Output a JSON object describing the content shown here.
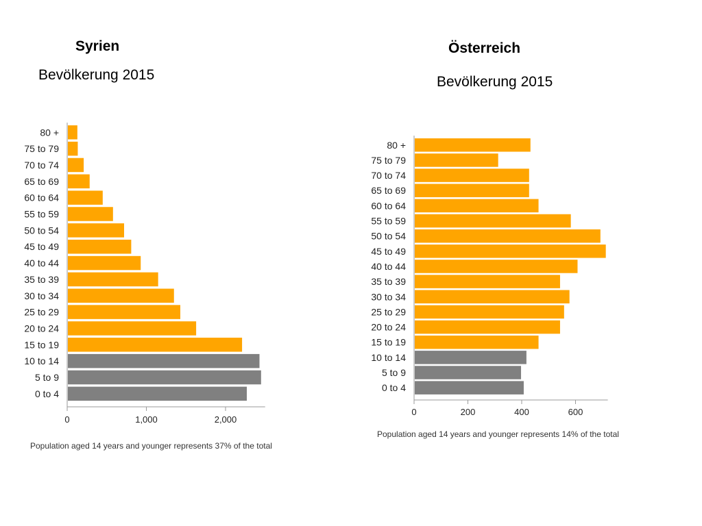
{
  "charts": [
    {
      "title": "Syrien",
      "subtitle": "Bevölkerung 2015"
    },
    {
      "title": "Österreich",
      "subtitle": "Bevölkerung 2015"
    }
  ],
  "colors": {
    "young": "#808080",
    "other": "#FFA500",
    "axis": "#999999"
  },
  "chart_data": [
    {
      "type": "bar",
      "title": "Syrien",
      "subtitle": "Bevölkerung 2015",
      "orientation": "horizontal",
      "categories": [
        "80 +",
        "75 to 79",
        "70 to 74",
        "65 to 69",
        "60 to 64",
        "55 to 59",
        "50 to 54",
        "45 to 49",
        "40 to 44",
        "35 to 39",
        "30 to 34",
        "25 to 29",
        "20 to 24",
        "15 to 19",
        "10 to 14",
        "5 to 9",
        "0 to 4"
      ],
      "values": [
        120,
        125,
        200,
        275,
        440,
        570,
        710,
        800,
        920,
        1140,
        1340,
        1420,
        1620,
        2200,
        2420,
        2440,
        2260
      ],
      "young_categories": [
        "10 to 14",
        "5 to 9",
        "0 to 4"
      ],
      "xlim": [
        0,
        2500
      ],
      "xticks": [
        0,
        1000,
        2000
      ],
      "xtick_labels": [
        "0",
        "1,000",
        "2,000"
      ],
      "note": "Population aged 14 years and younger represents 37% of the total"
    },
    {
      "type": "bar",
      "title": "Österreich",
      "subtitle": "Bevölkerung 2015",
      "orientation": "horizontal",
      "categories": [
        "80 +",
        "75 to 79",
        "70 to 74",
        "65 to 69",
        "60 to 64",
        "55 to 59",
        "50 to 54",
        "45 to 49",
        "40 to 44",
        "35 to 39",
        "30 to 34",
        "25 to 29",
        "20 to 24",
        "15 to 19",
        "10 to 14",
        "5 to 9",
        "0 to 4"
      ],
      "values": [
        430,
        310,
        425,
        425,
        460,
        580,
        690,
        710,
        605,
        540,
        575,
        555,
        540,
        460,
        415,
        395,
        405
      ],
      "young_categories": [
        "10 to 14",
        "5 to 9",
        "0 to 4"
      ],
      "xlim": [
        0,
        720
      ],
      "xticks": [
        0,
        200,
        400,
        600
      ],
      "xtick_labels": [
        "0",
        "200",
        "400",
        "600"
      ],
      "note": "Population aged 14 years and younger represents 14% of the total"
    }
  ]
}
